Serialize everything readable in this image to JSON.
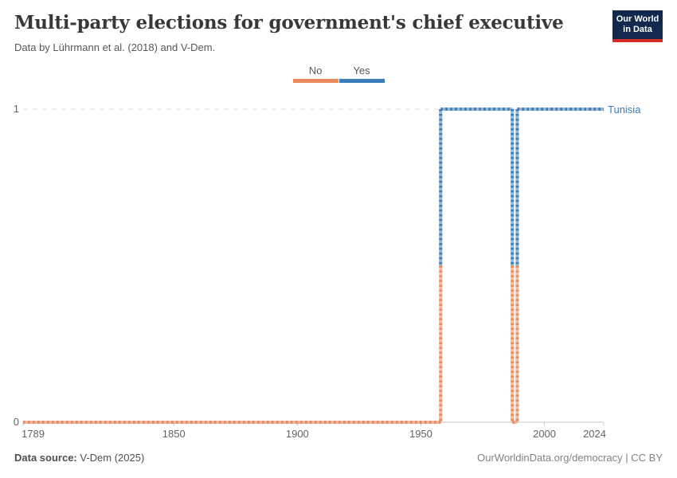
{
  "header": {
    "title": "Multi-party elections for government's chief executive",
    "subtitle": "Data by Lührmann et al. (2018) and V-Dem.",
    "logo": {
      "line1": "Our World",
      "line2": "in Data"
    }
  },
  "legend": {
    "items": [
      {
        "label": "No",
        "color": "#ED8A5C"
      },
      {
        "label": "Yes",
        "color": "#3C7EBB"
      }
    ]
  },
  "chart_data": {
    "type": "line",
    "title": "Multi-party elections for government's chief executive",
    "entity": "Tunisia",
    "entity_color": "#3C7EBB",
    "xlim": [
      1789,
      2024
    ],
    "ylim": [
      0,
      1
    ],
    "x_ticks": [
      1789,
      1850,
      1900,
      1950,
      2000,
      2024
    ],
    "y_ticks": [
      0,
      1
    ],
    "grid": "dashed-at-1",
    "legend_position": "top-center",
    "series": [
      {
        "name": "Tunisia",
        "segments": [
          {
            "value": 0,
            "from": 1789,
            "to": 1958,
            "category": "No"
          },
          {
            "value": 1,
            "from": 1958,
            "to": 1987,
            "category": "Yes"
          },
          {
            "value": 0,
            "from": 1987,
            "to": 1989,
            "category": "No"
          },
          {
            "value": 1,
            "from": 1989,
            "to": 2024,
            "category": "Yes"
          }
        ]
      }
    ],
    "colors": {
      "no": "#ED8A5C",
      "yes": "#3C7EBB",
      "gridline": "#DBDBDB",
      "axis": "#C9C9C9"
    }
  },
  "footer": {
    "source_label": "Data source:",
    "source_value": " V-Dem (2025)",
    "credit": "OurWorldinData.org/democracy | CC BY"
  }
}
